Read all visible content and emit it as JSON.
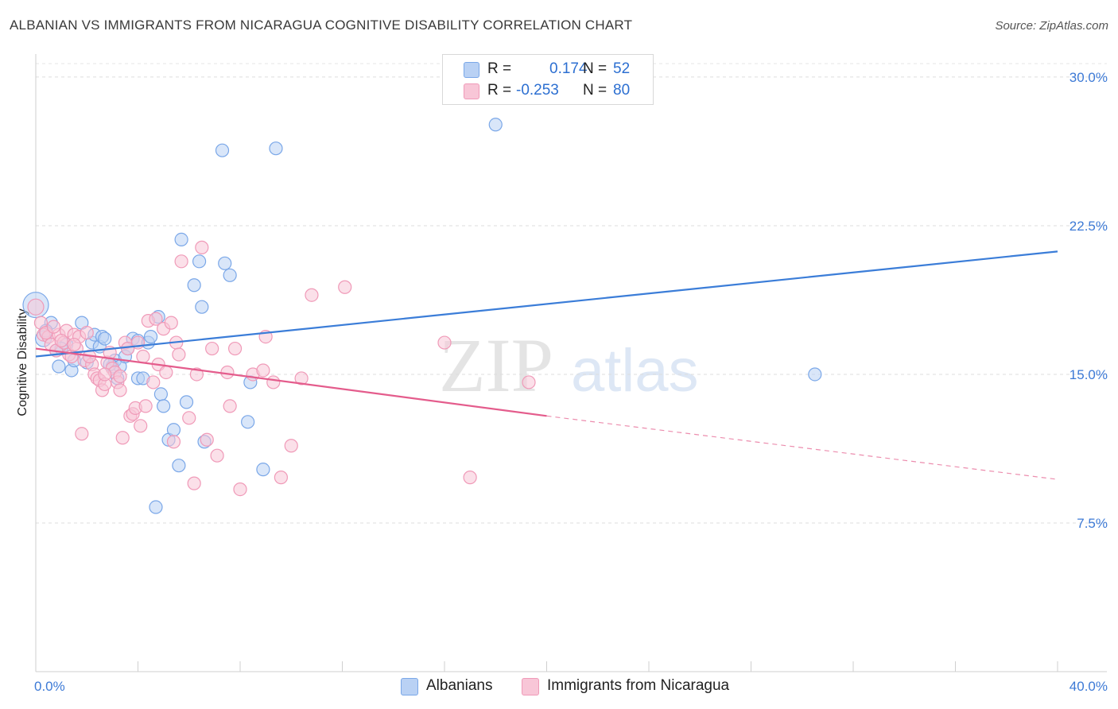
{
  "header": {
    "title": "ALBANIAN VS IMMIGRANTS FROM NICARAGUA COGNITIVE DISABILITY CORRELATION CHART",
    "source": "Source: ZipAtlas.com"
  },
  "watermark": {
    "zip": "ZIP",
    "atlas": "atlas"
  },
  "stats": [
    {
      "r_label": "R =",
      "r_value": "0.174",
      "n_label": "N =",
      "n_value": "52",
      "color": "#7aa7e8",
      "fill": "#b9d1f4"
    },
    {
      "r_label": "R =",
      "r_value": "-0.253",
      "n_label": "N =",
      "n_value": "80",
      "color": "#f09ab8",
      "fill": "#f8c6d7"
    }
  ],
  "legend": [
    {
      "label": "Albanians",
      "fill": "#b9d1f4",
      "stroke": "#7aa7e8"
    },
    {
      "label": "Immigrants from Nicaragua",
      "fill": "#f8c6d7",
      "stroke": "#f09ab8"
    }
  ],
  "chart_data": {
    "type": "scatter",
    "title": "ALBANIAN VS IMMIGRANTS FROM NICARAGUA COGNITIVE DISABILITY CORRELATION CHART",
    "xlabel": "",
    "ylabel": "Cognitive Disability",
    "xlim": [
      0,
      40
    ],
    "ylim": [
      0,
      31
    ],
    "x_tick_labels": [
      "0.0%",
      "40.0%"
    ],
    "y_ticks": [
      7.5,
      15.0,
      22.5,
      30.0
    ],
    "y_tick_labels": [
      "7.5%",
      "15.0%",
      "22.5%",
      "30.0%"
    ],
    "grid": true,
    "series": [
      {
        "name": "Albanians",
        "color": "#3b7dd8",
        "fill": "#b9d1f4",
        "stroke": "#7aa7e8",
        "trend": {
          "x": [
            0,
            40
          ],
          "y": [
            15.9,
            21.2
          ]
        },
        "points": [
          [
            0.0,
            18.5,
            16
          ],
          [
            0.3,
            16.8,
            10
          ],
          [
            0.6,
            17.6,
            8
          ],
          [
            0.8,
            16.2,
            8
          ],
          [
            0.9,
            15.4,
            8
          ],
          [
            1.2,
            16.5,
            8
          ],
          [
            1.4,
            15.2,
            8
          ],
          [
            1.5,
            15.7,
            8
          ],
          [
            1.8,
            17.6,
            8
          ],
          [
            2.0,
            15.6,
            8
          ],
          [
            2.2,
            16.6,
            8
          ],
          [
            2.3,
            17.0,
            8
          ],
          [
            2.5,
            16.4,
            8
          ],
          [
            2.6,
            16.9,
            8
          ],
          [
            2.7,
            16.8,
            8
          ],
          [
            3.0,
            15.4,
            8
          ],
          [
            3.1,
            15.7,
            8
          ],
          [
            3.2,
            14.8,
            8
          ],
          [
            3.3,
            15.4,
            8
          ],
          [
            3.5,
            15.9,
            8
          ],
          [
            3.6,
            16.3,
            8
          ],
          [
            3.8,
            16.8,
            8
          ],
          [
            4.0,
            16.7,
            8
          ],
          [
            4.0,
            14.8,
            8
          ],
          [
            4.2,
            14.8,
            8
          ],
          [
            4.4,
            16.6,
            8
          ],
          [
            4.5,
            16.9,
            8
          ],
          [
            4.8,
            17.9,
            8
          ],
          [
            4.9,
            14.0,
            8
          ],
          [
            5.0,
            13.4,
            8
          ],
          [
            5.2,
            11.7,
            8
          ],
          [
            5.4,
            12.2,
            8
          ],
          [
            5.6,
            10.4,
            8
          ],
          [
            5.7,
            21.8,
            8
          ],
          [
            5.9,
            13.6,
            8
          ],
          [
            6.2,
            19.5,
            8
          ],
          [
            6.4,
            20.7,
            8
          ],
          [
            6.5,
            18.4,
            8
          ],
          [
            6.6,
            11.6,
            8
          ],
          [
            7.3,
            26.3,
            8
          ],
          [
            7.4,
            20.6,
            8
          ],
          [
            7.6,
            20.0,
            8
          ],
          [
            8.3,
            12.6,
            8
          ],
          [
            8.4,
            14.6,
            8
          ],
          [
            8.9,
            10.2,
            8
          ],
          [
            9.4,
            26.4,
            8
          ],
          [
            4.7,
            8.3,
            8
          ],
          [
            18.0,
            27.6,
            8
          ],
          [
            30.5,
            15.0,
            8
          ],
          [
            0.4,
            17.2,
            8
          ],
          [
            1.0,
            16.3,
            8
          ],
          [
            2.9,
            15.5,
            8
          ]
        ]
      },
      {
        "name": "Immigrants from Nicaragua",
        "color": "#e45c8c",
        "fill": "#f8c6d7",
        "stroke": "#f09ab8",
        "trend": {
          "x": [
            0,
            20
          ],
          "y": [
            16.3,
            12.9
          ],
          "dash_to": [
            40,
            9.7
          ]
        },
        "points": [
          [
            0.0,
            18.4,
            10
          ],
          [
            0.2,
            17.6,
            8
          ],
          [
            0.3,
            17.0,
            8
          ],
          [
            0.5,
            16.9,
            8
          ],
          [
            0.6,
            16.5,
            8
          ],
          [
            0.8,
            16.2,
            8
          ],
          [
            0.9,
            17.0,
            8
          ],
          [
            1.1,
            16.6,
            8
          ],
          [
            1.2,
            17.2,
            8
          ],
          [
            1.3,
            16.0,
            8
          ],
          [
            1.4,
            15.9,
            8
          ],
          [
            1.5,
            17.0,
            8
          ],
          [
            1.6,
            16.3,
            8
          ],
          [
            1.7,
            16.9,
            8
          ],
          [
            1.8,
            12.0,
            8
          ],
          [
            1.9,
            15.7,
            8
          ],
          [
            2.0,
            17.1,
            8
          ],
          [
            2.2,
            15.5,
            8
          ],
          [
            2.3,
            15.0,
            8
          ],
          [
            2.4,
            14.8,
            8
          ],
          [
            2.5,
            14.7,
            8
          ],
          [
            2.6,
            14.2,
            8
          ],
          [
            2.7,
            14.5,
            8
          ],
          [
            2.8,
            15.6,
            8
          ],
          [
            2.9,
            16.1,
            8
          ],
          [
            3.0,
            15.3,
            8
          ],
          [
            3.1,
            15.1,
            8
          ],
          [
            3.2,
            14.6,
            8
          ],
          [
            3.3,
            14.2,
            8
          ],
          [
            3.4,
            11.8,
            8
          ],
          [
            3.5,
            16.6,
            8
          ],
          [
            3.6,
            16.3,
            8
          ],
          [
            3.7,
            12.9,
            8
          ],
          [
            3.8,
            13.0,
            8
          ],
          [
            3.9,
            13.3,
            8
          ],
          [
            4.0,
            16.6,
            8
          ],
          [
            4.1,
            12.4,
            8
          ],
          [
            4.3,
            13.4,
            8
          ],
          [
            4.4,
            17.7,
            8
          ],
          [
            4.6,
            14.6,
            8
          ],
          [
            4.7,
            17.8,
            8
          ],
          [
            4.8,
            15.5,
            8
          ],
          [
            5.0,
            17.3,
            8
          ],
          [
            5.1,
            15.1,
            8
          ],
          [
            5.3,
            17.6,
            8
          ],
          [
            5.4,
            11.6,
            8
          ],
          [
            5.5,
            16.6,
            8
          ],
          [
            5.6,
            16.0,
            8
          ],
          [
            5.7,
            20.7,
            8
          ],
          [
            6.0,
            12.8,
            8
          ],
          [
            6.2,
            9.5,
            8
          ],
          [
            6.3,
            15.0,
            8
          ],
          [
            6.5,
            21.4,
            8
          ],
          [
            6.7,
            11.7,
            8
          ],
          [
            6.9,
            16.3,
            8
          ],
          [
            7.1,
            10.9,
            8
          ],
          [
            7.5,
            15.1,
            8
          ],
          [
            7.6,
            13.4,
            8
          ],
          [
            7.8,
            16.3,
            8
          ],
          [
            8.0,
            9.2,
            8
          ],
          [
            8.5,
            15.0,
            8
          ],
          [
            8.9,
            15.2,
            8
          ],
          [
            9.0,
            16.9,
            8
          ],
          [
            9.3,
            14.6,
            8
          ],
          [
            9.6,
            9.8,
            8
          ],
          [
            10.0,
            11.4,
            8
          ],
          [
            10.4,
            14.8,
            8
          ],
          [
            10.8,
            19.0,
            8
          ],
          [
            12.1,
            19.4,
            8
          ],
          [
            0.4,
            17.1,
            8
          ],
          [
            0.7,
            17.4,
            8
          ],
          [
            1.0,
            16.7,
            8
          ],
          [
            1.5,
            16.5,
            8
          ],
          [
            2.1,
            15.9,
            8
          ],
          [
            2.7,
            15.0,
            8
          ],
          [
            3.3,
            14.9,
            8
          ],
          [
            4.2,
            15.9,
            8
          ],
          [
            16.0,
            16.6,
            8
          ],
          [
            17.0,
            9.8,
            8
          ],
          [
            19.3,
            14.6,
            8
          ]
        ]
      }
    ]
  }
}
